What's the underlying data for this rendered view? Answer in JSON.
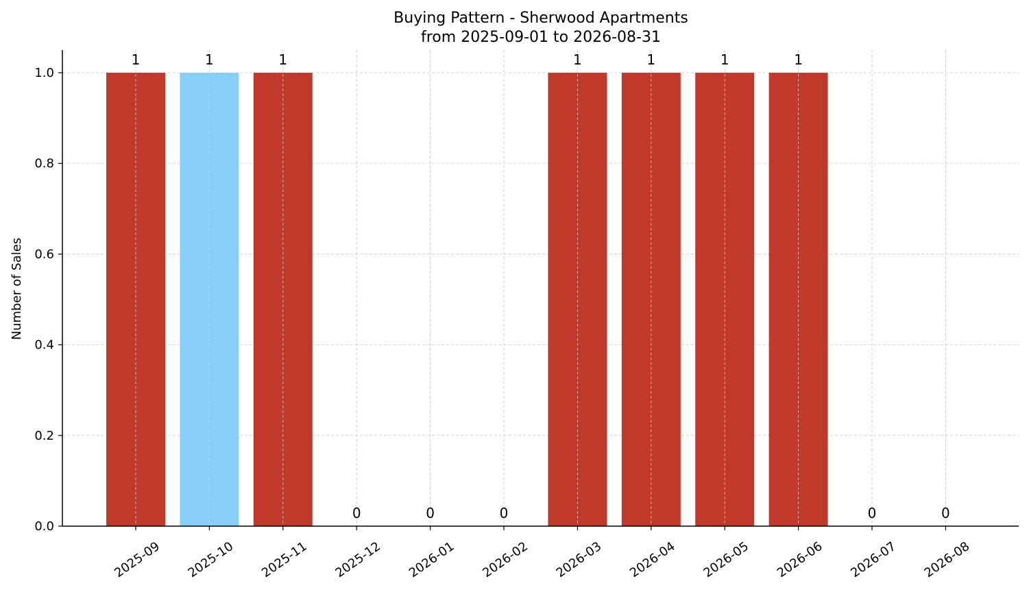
{
  "chart_data": {
    "type": "bar",
    "title": "Buying Pattern - Sherwood Apartments",
    "subtitle": "from 2025-09-01 to 2026-08-31",
    "xlabel": "",
    "ylabel": "Number of Sales",
    "ylim": [
      0,
      1.05
    ],
    "yticks": [
      "0.0",
      "0.2",
      "0.4",
      "0.6",
      "0.8",
      "1.0"
    ],
    "grid": true,
    "categories": [
      "2025-09",
      "2025-10",
      "2025-11",
      "2025-12",
      "2026-01",
      "2026-02",
      "2026-03",
      "2026-04",
      "2026-05",
      "2026-06",
      "2026-07",
      "2026-08"
    ],
    "values": [
      1,
      1,
      1,
      0,
      0,
      0,
      1,
      1,
      1,
      1,
      0,
      0
    ],
    "bar_colors": [
      "#c0392b",
      "#87cefa",
      "#c0392b",
      "#c0392b",
      "#c0392b",
      "#c0392b",
      "#c0392b",
      "#c0392b",
      "#c0392b",
      "#c0392b",
      "#c0392b",
      "#c0392b"
    ]
  }
}
